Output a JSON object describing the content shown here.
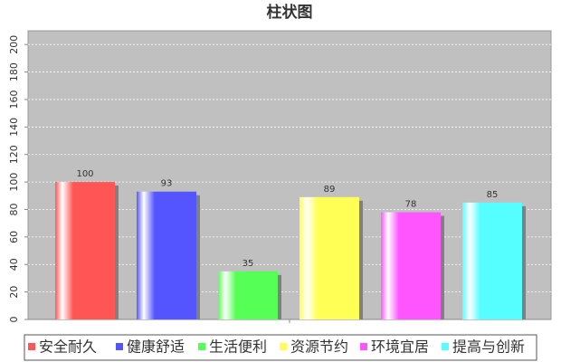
{
  "chart_data": {
    "type": "bar",
    "title": "柱状图",
    "categories": [
      null
    ],
    "series": [
      {
        "name": "安全耐久",
        "color": "#ff5555",
        "values": [
          100
        ]
      },
      {
        "name": "健康舒适",
        "color": "#5555ff",
        "values": [
          93
        ]
      },
      {
        "name": "生活便利",
        "color": "#55ff55",
        "values": [
          35
        ]
      },
      {
        "name": "资源节约",
        "color": "#ffff55",
        "values": [
          89
        ]
      },
      {
        "name": "环境宜居",
        "color": "#ff55ff",
        "values": [
          78
        ]
      },
      {
        "name": "提高与创新",
        "color": "#55ffff",
        "values": [
          85
        ]
      }
    ],
    "ylim": [
      0,
      210
    ],
    "yticks": [
      0,
      20,
      40,
      60,
      80,
      100,
      120,
      140,
      160,
      180,
      200
    ],
    "grid": true,
    "legend": "bottom"
  }
}
